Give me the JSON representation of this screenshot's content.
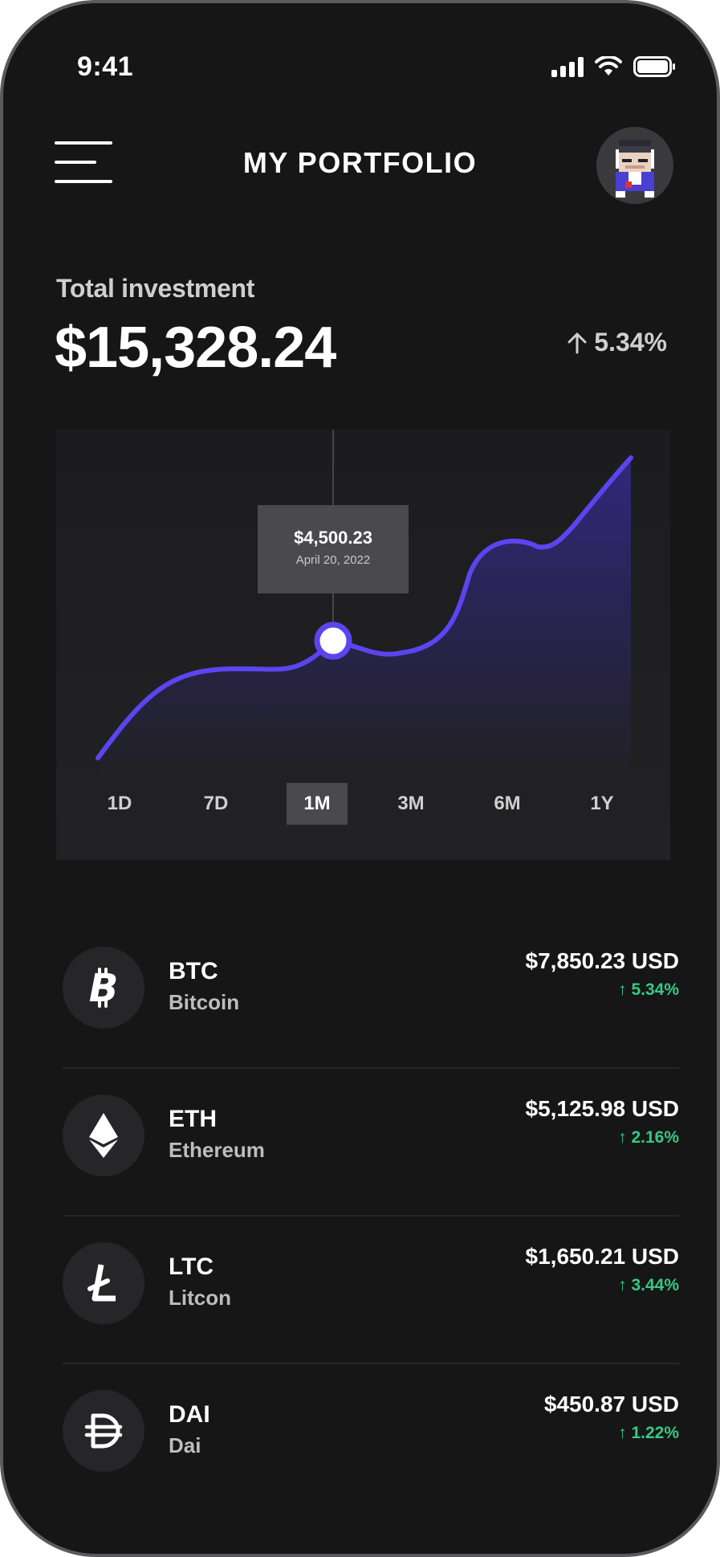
{
  "status_bar": {
    "time": "9:41",
    "icons": [
      "signal-icon",
      "wifi-icon",
      "battery-icon"
    ]
  },
  "header": {
    "title": "MY PORTFOLIO",
    "menu_icon": "hamburger-menu-icon",
    "avatar_icon": "pixel-avatar"
  },
  "investment": {
    "label": "Total investment",
    "amount": "$15,328.24",
    "change": "5.34%",
    "change_direction": "up"
  },
  "chart": {
    "tooltip_value": "$4,500.23",
    "tooltip_date": "April 20, 2022",
    "line_color": "#5b45f0",
    "periods": [
      "1D",
      "7D",
      "1M",
      "3M",
      "6M",
      "1Y"
    ],
    "active_period": "1M"
  },
  "coins": [
    {
      "symbol": "BTC",
      "name": "Bitcoin",
      "value": "$7,850.23 USD",
      "change": "5.34%",
      "icon": "bitcoin-icon"
    },
    {
      "symbol": "ETH",
      "name": "Ethereum",
      "value": "$5,125.98 USD",
      "change": "2.16%",
      "icon": "ethereum-icon"
    },
    {
      "symbol": "LTC",
      "name": "Litcon",
      "value": "$1,650.21 USD",
      "change": "3.44%",
      "icon": "litecoin-icon"
    },
    {
      "symbol": "DAI",
      "name": "Dai",
      "value": "$450.87 USD",
      "change": "1.22%",
      "icon": "dai-icon"
    }
  ],
  "colors": {
    "background": "#161616",
    "positive": "#36c985",
    "accent": "#5b45f0"
  }
}
